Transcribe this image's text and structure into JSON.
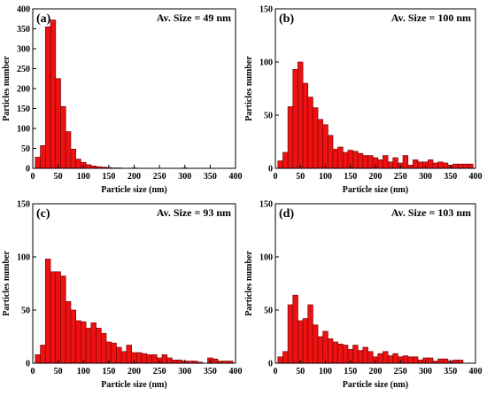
{
  "style": {
    "bar_fill": "#ee1111",
    "bar_stroke": "#7a0606",
    "axis_color": "#000000",
    "background": "#ffffff"
  },
  "chart_data": [
    {
      "type": "bar",
      "panel_label": "(a)",
      "annotation": "Av. Size = 49 nm",
      "xlabel": "Particle size (nm)",
      "ylabel": "Particles number",
      "xlim": [
        0,
        400
      ],
      "ylim": [
        0,
        400
      ],
      "xticks": [
        0,
        50,
        100,
        150,
        200,
        250,
        300,
        350,
        400
      ],
      "yticks": [
        0,
        50,
        100,
        150,
        200,
        250,
        300,
        350,
        400
      ],
      "bin_width": 10,
      "x": [
        10,
        20,
        30,
        40,
        50,
        60,
        70,
        80,
        90,
        100,
        110,
        120,
        130,
        140,
        150,
        160,
        170,
        180,
        190,
        200,
        210,
        220,
        230,
        240,
        250,
        260,
        270,
        280,
        290,
        300,
        310,
        320,
        330,
        340,
        350,
        360,
        370,
        380,
        390
      ],
      "values": [
        28,
        57,
        355,
        372,
        225,
        155,
        92,
        48,
        23,
        15,
        9,
        6,
        4,
        3,
        2,
        1,
        1,
        0,
        0,
        1,
        0,
        0,
        0,
        0,
        0,
        0,
        0,
        0,
        0,
        1,
        0,
        0,
        0,
        0,
        0,
        0,
        0,
        0,
        0
      ]
    },
    {
      "type": "bar",
      "panel_label": "(b)",
      "annotation": "Av. Size = 100 nm",
      "xlabel": "Particle size (nm)",
      "ylabel": "Particles number",
      "xlim": [
        0,
        400
      ],
      "ylim": [
        0,
        150
      ],
      "xticks": [
        0,
        50,
        100,
        150,
        200,
        250,
        300,
        350,
        400
      ],
      "yticks": [
        0,
        50,
        100,
        150
      ],
      "bin_width": 10,
      "x": [
        10,
        20,
        30,
        40,
        50,
        60,
        70,
        80,
        90,
        100,
        110,
        120,
        130,
        140,
        150,
        160,
        170,
        180,
        190,
        200,
        210,
        220,
        230,
        240,
        250,
        260,
        270,
        280,
        290,
        300,
        310,
        320,
        330,
        340,
        350,
        360,
        370,
        380,
        390
      ],
      "values": [
        7,
        15,
        58,
        93,
        100,
        80,
        67,
        57,
        46,
        41,
        31,
        18,
        20,
        15,
        17,
        16,
        14,
        12,
        12,
        10,
        8,
        12,
        6,
        10,
        5,
        12,
        3,
        8,
        6,
        6,
        8,
        5,
        6,
        5,
        3,
        4,
        4,
        4,
        4
      ]
    },
    {
      "type": "bar",
      "panel_label": "(c)",
      "annotation": "Av. Size = 93 nm",
      "xlabel": "Particle size (nm)",
      "ylabel": "Particles number",
      "xlim": [
        0,
        400
      ],
      "ylim": [
        0,
        150
      ],
      "xticks": [
        0,
        50,
        100,
        150,
        200,
        250,
        300,
        350,
        400
      ],
      "yticks": [
        0,
        50,
        100,
        150
      ],
      "bin_width": 10,
      "x": [
        10,
        20,
        30,
        40,
        50,
        60,
        70,
        80,
        90,
        100,
        110,
        120,
        130,
        140,
        150,
        160,
        170,
        180,
        190,
        200,
        210,
        220,
        230,
        240,
        250,
        260,
        270,
        280,
        290,
        300,
        310,
        320,
        330,
        340,
        350,
        360,
        370,
        380,
        390
      ],
      "values": [
        8,
        17,
        98,
        86,
        86,
        82,
        58,
        50,
        40,
        39,
        33,
        38,
        33,
        28,
        20,
        19,
        15,
        11,
        17,
        10,
        10,
        9,
        8,
        8,
        5,
        8,
        5,
        3,
        3,
        2,
        2,
        2,
        1,
        0,
        5,
        4,
        2,
        2,
        2
      ]
    },
    {
      "type": "bar",
      "panel_label": "(d)",
      "annotation": "Av. Size = 103 nm",
      "xlabel": "Particle size (nm)",
      "ylabel": "Particles number",
      "xlim": [
        0,
        400
      ],
      "ylim": [
        0,
        150
      ],
      "xticks": [
        0,
        50,
        100,
        150,
        200,
        250,
        300,
        350,
        400
      ],
      "yticks": [
        0,
        50,
        100,
        150
      ],
      "bin_width": 10,
      "x": [
        10,
        20,
        30,
        40,
        50,
        60,
        70,
        80,
        90,
        100,
        110,
        120,
        130,
        140,
        150,
        160,
        170,
        180,
        190,
        200,
        210,
        220,
        230,
        240,
        250,
        260,
        270,
        280,
        290,
        300,
        310,
        320,
        330,
        340,
        350,
        360,
        370,
        380,
        390
      ],
      "values": [
        6,
        11,
        55,
        64,
        40,
        42,
        55,
        36,
        25,
        30,
        23,
        20,
        18,
        17,
        13,
        17,
        12,
        15,
        11,
        6,
        9,
        11,
        7,
        9,
        6,
        7,
        6,
        6,
        3,
        5,
        5,
        2,
        4,
        4,
        2,
        3,
        3,
        0,
        0
      ]
    }
  ]
}
